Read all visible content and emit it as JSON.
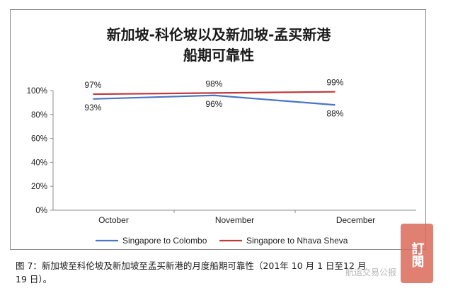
{
  "chart_data": {
    "type": "line",
    "title_lines": [
      "新加坡-科伦坡以及新加坡-孟买新港",
      "船期可靠性"
    ],
    "categories": [
      "October",
      "November",
      "December"
    ],
    "ylim": [
      0,
      100
    ],
    "yticks": [
      "0%",
      "20%",
      "40%",
      "60%",
      "80%",
      "100%"
    ],
    "grid": false,
    "legend_position": "bottom",
    "series": [
      {
        "name": "Singapore to Colombo",
        "color": "#4a74c6",
        "values": [
          93,
          96,
          88
        ],
        "labels": [
          "93%",
          "96%",
          "88%"
        ]
      },
      {
        "name": "Singapore to Nhava Sheva",
        "color": "#c0393b",
        "values": [
          97,
          98,
          99
        ],
        "labels": [
          "97%",
          "98%",
          "99%"
        ]
      }
    ]
  },
  "caption": {
    "line1": "图 7：新加坡至科伦坡及新加坡至孟买新港的月度船期可靠性（201",
    "line1_b": "年 10 月 1 日至12 月",
    "line2": "19 日）。"
  },
  "watermark": {
    "seal_text": "訂閱",
    "overlay_text": "航运交易公报"
  }
}
